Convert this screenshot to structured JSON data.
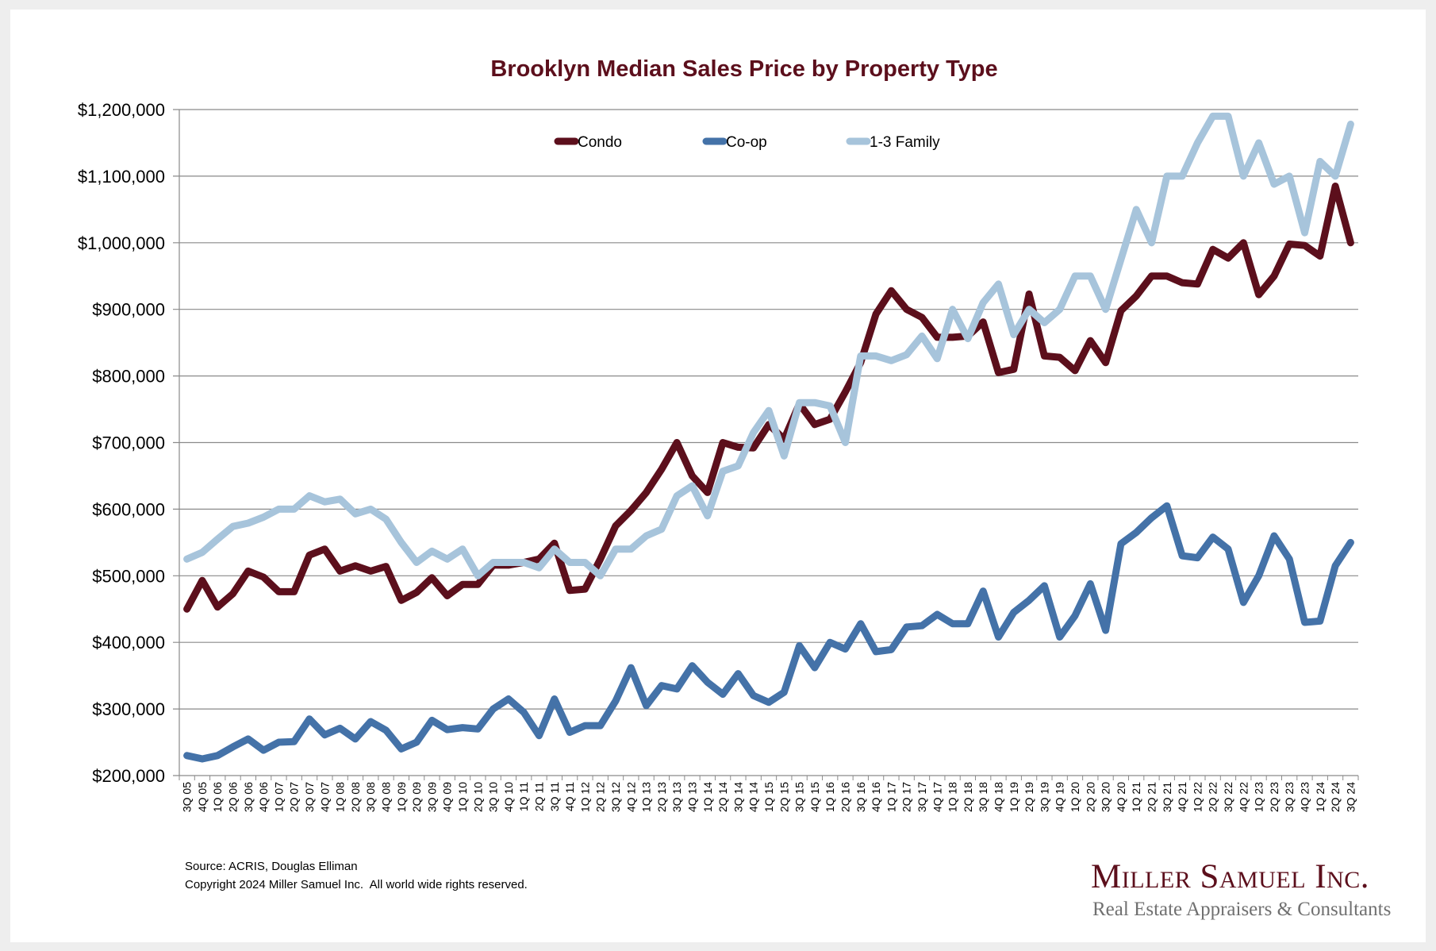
{
  "chart_data": {
    "type": "line",
    "title": "Brooklyn Median Sales Price by Property Type",
    "xlabel": "",
    "ylabel": "",
    "ylim": [
      200000,
      1200000
    ],
    "y_ticks": [
      200000,
      300000,
      400000,
      500000,
      600000,
      700000,
      800000,
      900000,
      1000000,
      1100000,
      1200000
    ],
    "y_tick_labels": [
      "$200,000",
      "$300,000",
      "$400,000",
      "$500,000",
      "$600,000",
      "$700,000",
      "$800,000",
      "$900,000",
      "$1,000,000",
      "$1,100,000",
      "$1,200,000"
    ],
    "grid": true,
    "legend_position": "top-center",
    "categories": [
      "3Q 05",
      "4Q 05",
      "1Q 06",
      "2Q 06",
      "3Q 06",
      "4Q 06",
      "1Q 07",
      "2Q 07",
      "3Q 07",
      "4Q 07",
      "1Q 08",
      "2Q 08",
      "3Q 08",
      "4Q 08",
      "1Q 09",
      "2Q 09",
      "3Q 09",
      "4Q 09",
      "1Q 10",
      "2Q 10",
      "3Q 10",
      "4Q 10",
      "1Q 11",
      "2Q 11",
      "3Q 11",
      "4Q 11",
      "1Q 12",
      "2Q 12",
      "3Q 12",
      "4Q 12",
      "1Q 13",
      "2Q 13",
      "3Q 13",
      "4Q 13",
      "1Q 14",
      "2Q 14",
      "3Q 14",
      "4Q 14",
      "1Q 15",
      "2Q 15",
      "3Q 15",
      "4Q 15",
      "1Q 16",
      "2Q 16",
      "3Q 16",
      "4Q 16",
      "1Q 17",
      "2Q 17",
      "3Q 17",
      "4Q 17",
      "1Q 18",
      "2Q 18",
      "3Q 18",
      "4Q 18",
      "1Q 19",
      "2Q 19",
      "3Q 19",
      "4Q 19",
      "1Q 20",
      "2Q 20",
      "3Q 20",
      "4Q 20",
      "1Q 21",
      "2Q 21",
      "3Q 21",
      "4Q 21",
      "1Q 22",
      "2Q 22",
      "3Q 22",
      "4Q 22",
      "1Q 23",
      "2Q 23",
      "3Q 23",
      "4Q 23",
      "1Q 24",
      "2Q 24",
      "3Q 24"
    ],
    "series": [
      {
        "name": "Condo",
        "color": "#5c0f1c",
        "values": [
          450000,
          493000,
          453000,
          473000,
          507000,
          498000,
          476000,
          476000,
          531000,
          540000,
          507000,
          515000,
          507000,
          514000,
          463000,
          475000,
          497000,
          470000,
          487000,
          487000,
          516000,
          516000,
          520000,
          525000,
          549000,
          478000,
          480000,
          525000,
          575000,
          598000,
          625000,
          660000,
          700000,
          650000,
          625000,
          700000,
          693000,
          692000,
          727000,
          705000,
          758000,
          727000,
          735000,
          776000,
          820000,
          893000,
          928000,
          900000,
          888000,
          858000,
          858000,
          860000,
          881000,
          805000,
          810000,
          923000,
          830000,
          828000,
          808000,
          853000,
          820000,
          898000,
          920000,
          950000,
          950000,
          940000,
          938000,
          990000,
          977000,
          1000000,
          922000,
          950000,
          998000,
          996000,
          980000,
          1085000,
          1000000
        ]
      },
      {
        "name": "Co-op",
        "color": "#4472a8",
        "values": [
          230000,
          225000,
          230000,
          243000,
          255000,
          238000,
          250000,
          251000,
          285000,
          261000,
          271000,
          255000,
          281000,
          268000,
          240000,
          250000,
          283000,
          269000,
          272000,
          270000,
          300000,
          315000,
          295000,
          260000,
          315000,
          265000,
          275000,
          275000,
          312000,
          362000,
          305000,
          335000,
          330000,
          365000,
          340000,
          322000,
          353000,
          320000,
          310000,
          325000,
          395000,
          362000,
          400000,
          390000,
          428000,
          386000,
          389000,
          423000,
          425000,
          442000,
          428000,
          428000,
          477000,
          408000,
          445000,
          463000,
          485000,
          408000,
          440000,
          488000,
          418000,
          548000,
          565000,
          587000,
          605000,
          530000,
          527000,
          558000,
          540000,
          460000,
          500000,
          560000,
          525000,
          430000,
          432000,
          515000,
          550000
        ]
      },
      {
        "name": "1-3 Family",
        "color": "#a7c4db",
        "values": [
          525000,
          535000,
          555000,
          574000,
          579000,
          588000,
          600000,
          600000,
          620000,
          611000,
          615000,
          593000,
          600000,
          585000,
          550000,
          520000,
          537000,
          525000,
          540000,
          500000,
          520000,
          520000,
          520000,
          512000,
          540000,
          520000,
          520000,
          500000,
          540000,
          540000,
          560000,
          570000,
          620000,
          635000,
          590000,
          657000,
          665000,
          715000,
          748000,
          680000,
          760000,
          760000,
          755000,
          700000,
          830000,
          830000,
          823000,
          832000,
          860000,
          826000,
          900000,
          856000,
          910000,
          938000,
          862000,
          900000,
          880000,
          900000,
          950000,
          950000,
          900000,
          975000,
          1050000,
          1000000,
          1100000,
          1100000,
          1150000,
          1190000,
          1190000,
          1100000,
          1150000,
          1088000,
          1100000,
          1015000,
          1122000,
          1100000,
          1178000
        ]
      }
    ]
  },
  "footer": {
    "source": "Source: ACRIS, Douglas Elliman",
    "copyright": "Copyright 2024 Miller Samuel Inc.  All world wide rights reserved."
  },
  "logo": {
    "name": "Miller Samuel Inc.",
    "tagline": "Real Estate Appraisers & Consultants"
  }
}
